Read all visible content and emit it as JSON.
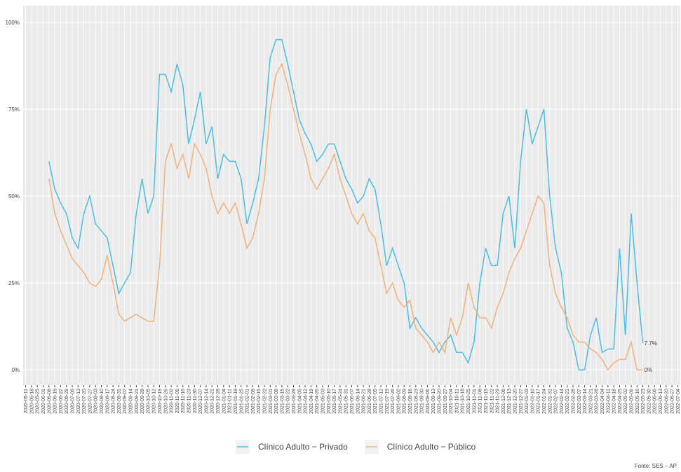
{
  "chart_data": {
    "type": "line",
    "x": [
      "2020-06-08",
      "2020-06-15",
      "2020-06-22",
      "2020-06-29",
      "2020-07-06",
      "2020-07-13",
      "2020-07-20",
      "2020-07-27",
      "2020-08-03",
      "2020-08-10",
      "2020-08-17",
      "2020-08-24",
      "2020-08-31",
      "2020-09-07",
      "2020-09-14",
      "2020-09-21",
      "2020-09-28",
      "2020-10-05",
      "2020-10-12",
      "2020-10-19",
      "2020-10-26",
      "2020-11-02",
      "2020-11-09",
      "2020-11-16",
      "2020-11-23",
      "2020-11-30",
      "2020-12-07",
      "2020-12-14",
      "2020-12-21",
      "2020-12-28",
      "2021-01-04",
      "2021-01-11",
      "2021-01-18",
      "2021-01-25",
      "2021-02-01",
      "2021-02-08",
      "2021-02-15",
      "2021-02-22",
      "2021-03-01",
      "2021-03-08",
      "2021-03-15",
      "2021-03-22",
      "2021-03-29",
      "2021-04-05",
      "2021-04-12",
      "2021-04-19",
      "2021-04-26",
      "2021-05-03",
      "2021-05-10",
      "2021-05-17",
      "2021-05-24",
      "2021-05-31",
      "2021-06-07",
      "2021-06-14",
      "2021-06-21",
      "2021-06-28",
      "2021-07-05",
      "2021-07-12",
      "2021-07-19",
      "2021-07-26",
      "2021-08-02",
      "2021-08-09",
      "2021-08-16",
      "2021-08-23",
      "2021-08-30",
      "2021-09-06",
      "2021-09-13",
      "2021-09-20",
      "2021-09-27",
      "2021-10-04",
      "2021-10-11",
      "2021-10-18",
      "2021-10-25",
      "2021-11-01",
      "2021-11-08",
      "2021-11-15",
      "2021-11-22",
      "2021-11-29",
      "2021-12-06",
      "2021-12-13",
      "2021-12-20",
      "2021-12-27",
      "2022-01-03",
      "2022-01-10",
      "2022-01-17",
      "2022-01-24",
      "2022-01-31",
      "2022-02-07",
      "2022-02-14",
      "2022-02-21",
      "2022-02-28",
      "2022-03-07",
      "2022-03-14",
      "2022-03-21",
      "2022-03-28",
      "2022-04-04",
      "2022-04-11",
      "2022-04-18",
      "2022-04-25",
      "2022-05-02",
      "2022-05-09",
      "2022-05-16",
      "2022-05-23"
    ],
    "series": [
      {
        "name": "Clínico Adulto − Privado",
        "color": "#4cbde3",
        "values": [
          60,
          52,
          48,
          45,
          38,
          35,
          45,
          50,
          42,
          40,
          38,
          30,
          22,
          25,
          28,
          45,
          55,
          45,
          50,
          85,
          85,
          80,
          88,
          82,
          65,
          72,
          80,
          65,
          70,
          55,
          62,
          60,
          60,
          55,
          42,
          48,
          55,
          70,
          90,
          95,
          95,
          88,
          80,
          72,
          68,
          65,
          60,
          62,
          65,
          65,
          60,
          55,
          52,
          48,
          50,
          55,
          52,
          42,
          30,
          35,
          30,
          25,
          12,
          15,
          12,
          10,
          8,
          5,
          8,
          10,
          5,
          5,
          2,
          8,
          25,
          35,
          30,
          30,
          45,
          50,
          35,
          60,
          75,
          65,
          70,
          75,
          50,
          35,
          28,
          12,
          8,
          0,
          0,
          10,
          15,
          5,
          6,
          6,
          35,
          10,
          45,
          25,
          7.7
        ]
      },
      {
        "name": "Clínico Adulto − Público",
        "color": "#f0b27a",
        "values": [
          55,
          45,
          40,
          36,
          32,
          30,
          28,
          25,
          24,
          26,
          33,
          25,
          16,
          14,
          15,
          16,
          15,
          14,
          14,
          30,
          60,
          65,
          58,
          62,
          55,
          65,
          62,
          58,
          50,
          45,
          48,
          45,
          48,
          42,
          35,
          38,
          45,
          55,
          75,
          85,
          88,
          82,
          75,
          68,
          62,
          55,
          52,
          55,
          58,
          62,
          55,
          50,
          45,
          42,
          45,
          40,
          38,
          30,
          22,
          25,
          20,
          18,
          20,
          12,
          10,
          8,
          5,
          8,
          5,
          15,
          10,
          15,
          25,
          18,
          15,
          15,
          12,
          18,
          22,
          28,
          32,
          35,
          40,
          45,
          50,
          48,
          30,
          22,
          18,
          15,
          10,
          8,
          8,
          6,
          5,
          3,
          0,
          2,
          3,
          3,
          8,
          0,
          0
        ]
      }
    ],
    "annotations": [
      {
        "text": "7.7%",
        "x": "2022-05-23",
        "y": 7.7
      },
      {
        "text": "0%",
        "x": "2022-05-23",
        "y": 0
      }
    ],
    "xlim": [
      "2020-05-08",
      "2022-07-07"
    ],
    "xticks": [
      "2020-05-11",
      "2020-05-18",
      "2020-05-25",
      "2020-06-01",
      "2020-06-08",
      "2020-06-15",
      "2020-06-22",
      "2020-06-29",
      "2020-07-06",
      "2020-07-13",
      "2020-07-20",
      "2020-07-27",
      "2020-08-03",
      "2020-08-10",
      "2020-08-17",
      "2020-08-24",
      "2020-08-31",
      "2020-09-07",
      "2020-09-14",
      "2020-09-21",
      "2020-09-28",
      "2020-10-05",
      "2020-10-12",
      "2020-10-19",
      "2020-10-26",
      "2020-11-02",
      "2020-11-09",
      "2020-11-16",
      "2020-11-23",
      "2020-11-30",
      "2020-12-07",
      "2020-12-14",
      "2020-12-21",
      "2020-12-28",
      "2021-01-04",
      "2021-01-11",
      "2021-01-18",
      "2021-01-25",
      "2021-02-01",
      "2021-02-08",
      "2021-02-15",
      "2021-02-22",
      "2021-03-01",
      "2021-03-08",
      "2021-03-15",
      "2021-03-22",
      "2021-03-29",
      "2021-04-05",
      "2021-04-12",
      "2021-04-19",
      "2021-04-26",
      "2021-05-03",
      "2021-05-10",
      "2021-05-17",
      "2021-05-24",
      "2021-05-31",
      "2021-06-07",
      "2021-06-14",
      "2021-06-21",
      "2021-06-28",
      "2021-07-05",
      "2021-07-12",
      "2021-07-19",
      "2021-07-26",
      "2021-08-02",
      "2021-08-09",
      "2021-08-16",
      "2021-08-23",
      "2021-08-30",
      "2021-09-06",
      "2021-09-13",
      "2021-09-20",
      "2021-09-27",
      "2021-10-04",
      "2021-10-11",
      "2021-10-18",
      "2021-10-25",
      "2021-11-01",
      "2021-11-08",
      "2021-11-15",
      "2021-11-22",
      "2021-11-29",
      "2021-12-06",
      "2021-12-13",
      "2021-12-20",
      "2021-12-27",
      "2022-01-03",
      "2022-01-10",
      "2022-01-17",
      "2022-01-24",
      "2022-01-31",
      "2022-02-07",
      "2022-02-14",
      "2022-02-21",
      "2022-02-28",
      "2022-03-07",
      "2022-03-14",
      "2022-03-21",
      "2022-03-28",
      "2022-04-04",
      "2022-04-11",
      "2022-04-18",
      "2022-04-25",
      "2022-05-02",
      "2022-05-09",
      "2022-05-16",
      "2022-05-23",
      "2022-05-30",
      "2022-06-06",
      "2022-06-13",
      "2022-06-20",
      "2022-06-27",
      "2022-07-04"
    ],
    "ylim": [
      -4.4,
      104.8
    ],
    "yticks": [
      {
        "value": 0,
        "label": "0%"
      },
      {
        "value": 25,
        "label": "25%"
      },
      {
        "value": 50,
        "label": "50%"
      },
      {
        "value": 75,
        "label": "75%"
      },
      {
        "value": 100,
        "label": "100%"
      }
    ],
    "grid": true,
    "legend": "bottom",
    "caption": "Fonte: SES − AP"
  }
}
